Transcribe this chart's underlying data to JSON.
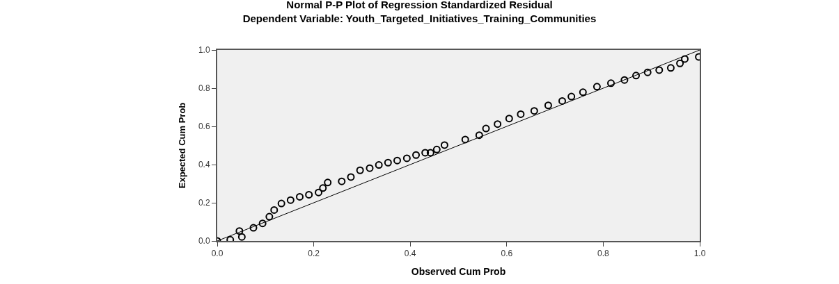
{
  "chart_data": {
    "type": "scatter",
    "title": "Normal P-P Plot of Regression Standardized Residual",
    "subtitle": "Dependent Variable: Youth_Targeted_Initiatives_Training_Communities",
    "xlabel": "Observed Cum Prob",
    "ylabel": "Expected Cum Prob",
    "xlim": [
      0,
      1
    ],
    "ylim": [
      0,
      1
    ],
    "xticks": [
      {
        "value": 0,
        "label": "0.0"
      },
      {
        "value": 0.2,
        "label": "0.2"
      },
      {
        "value": 0.4,
        "label": "0.4"
      },
      {
        "value": 0.6,
        "label": "0.6"
      },
      {
        "value": 0.8,
        "label": "0.8"
      },
      {
        "value": 1,
        "label": "1.0"
      }
    ],
    "yticks": [
      {
        "value": 0,
        "label": "0.0"
      },
      {
        "value": 0.2,
        "label": "0.2"
      },
      {
        "value": 0.4,
        "label": "0.4"
      },
      {
        "value": 0.6,
        "label": "0.6"
      },
      {
        "value": 0.8,
        "label": "0.8"
      },
      {
        "value": 1,
        "label": "1.0"
      }
    ],
    "grid": false,
    "series": [
      {
        "marker": "circle",
        "color": "#000000",
        "x": [
          0,
          0.027,
          0.046,
          0.051,
          0.075,
          0.094,
          0.108,
          0.118,
          0.133,
          0.152,
          0.171,
          0.19,
          0.21,
          0.219,
          0.229,
          0.258,
          0.277,
          0.296,
          0.316,
          0.335,
          0.354,
          0.373,
          0.393,
          0.412,
          0.431,
          0.442,
          0.455,
          0.471,
          0.514,
          0.543,
          0.557,
          0.581,
          0.605,
          0.629,
          0.657,
          0.686,
          0.715,
          0.734,
          0.758,
          0.787,
          0.816,
          0.844,
          0.868,
          0.892,
          0.916,
          0.94,
          0.959,
          0.969,
          0.998
        ],
        "values": [
          0,
          0.006,
          0.052,
          0.021,
          0.069,
          0.092,
          0.127,
          0.162,
          0.196,
          0.214,
          0.231,
          0.242,
          0.254,
          0.277,
          0.306,
          0.312,
          0.335,
          0.37,
          0.381,
          0.398,
          0.41,
          0.421,
          0.433,
          0.45,
          0.462,
          0.462,
          0.479,
          0.502,
          0.531,
          0.554,
          0.589,
          0.612,
          0.641,
          0.664,
          0.681,
          0.71,
          0.733,
          0.756,
          0.779,
          0.808,
          0.826,
          0.843,
          0.866,
          0.883,
          0.895,
          0.906,
          0.93,
          0.953,
          0.964
        ]
      },
      {
        "type": "line",
        "marker": "none",
        "color": "#000000",
        "x": [
          0,
          1
        ],
        "values": [
          0,
          1
        ]
      }
    ]
  }
}
